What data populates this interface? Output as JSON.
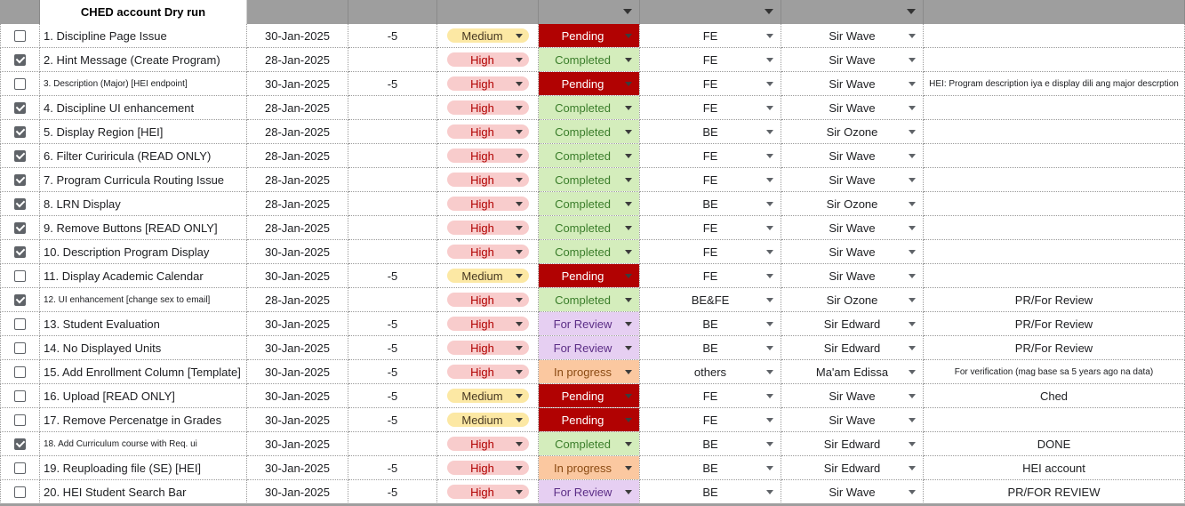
{
  "sheet": {
    "title": "CHED account Dry run"
  },
  "colors": {
    "header_bar": "#9e9e9e",
    "medium_chip": "#fce8a4",
    "high_chip": "#f8cccc",
    "pending": "#b10202",
    "completed": "#d4edbc",
    "for_review": "#e6cff2",
    "in_progress": "#fbc8a0"
  },
  "rows": [
    {
      "checked": false,
      "task": "1. Discipline Page Issue",
      "date": "30-Jan-2025",
      "num": "-5",
      "priority": "Medium",
      "status": "Pending",
      "team": "FE",
      "owner": "Sir Wave",
      "notes": ""
    },
    {
      "checked": true,
      "task": "2. Hint Message (Create Program)",
      "date": "28-Jan-2025",
      "num": "",
      "priority": "High",
      "status": "Completed",
      "team": "FE",
      "owner": "Sir Wave",
      "notes": ""
    },
    {
      "checked": false,
      "task": "3. Description (Major) [HEI endpoint]",
      "date": "30-Jan-2025",
      "num": "-5",
      "priority": "High",
      "status": "Pending",
      "team": "FE",
      "owner": "Sir Wave",
      "notes": "HEI: Program description iya e display dili ang major descrption"
    },
    {
      "checked": true,
      "task": "4. Discipline UI enhancement",
      "date": "28-Jan-2025",
      "num": "",
      "priority": "High",
      "status": "Completed",
      "team": "FE",
      "owner": "Sir Wave",
      "notes": ""
    },
    {
      "checked": true,
      "task": "5. Display Region [HEI]",
      "date": "28-Jan-2025",
      "num": "",
      "priority": "High",
      "status": "Completed",
      "team": "BE",
      "owner": "Sir Ozone",
      "notes": ""
    },
    {
      "checked": true,
      "task": "6. Filter Curiricula (READ ONLY)",
      "date": "28-Jan-2025",
      "num": "",
      "priority": "High",
      "status": "Completed",
      "team": "FE",
      "owner": "Sir Wave",
      "notes": ""
    },
    {
      "checked": true,
      "task": "7. Program Curricula Routing Issue",
      "date": "28-Jan-2025",
      "num": "",
      "priority": "High",
      "status": "Completed",
      "team": "FE",
      "owner": "Sir Wave",
      "notes": ""
    },
    {
      "checked": true,
      "task": "8. LRN Display",
      "date": "28-Jan-2025",
      "num": "",
      "priority": "High",
      "status": "Completed",
      "team": "BE",
      "owner": "Sir Ozone",
      "notes": ""
    },
    {
      "checked": true,
      "task": "9. Remove Buttons [READ ONLY]",
      "date": "28-Jan-2025",
      "num": "",
      "priority": "High",
      "status": "Completed",
      "team": "FE",
      "owner": "Sir Wave",
      "notes": ""
    },
    {
      "checked": true,
      "task": "10. Description Program Display",
      "date": "30-Jan-2025",
      "num": "",
      "priority": "High",
      "status": "Completed",
      "team": "FE",
      "owner": "Sir Wave",
      "notes": ""
    },
    {
      "checked": false,
      "task": "11. Display Academic Calendar",
      "date": "30-Jan-2025",
      "num": "-5",
      "priority": "Medium",
      "status": "Pending",
      "team": "FE",
      "owner": "Sir Wave",
      "notes": ""
    },
    {
      "checked": true,
      "task": "12. UI enhancement [change sex to email]",
      "date": "28-Jan-2025",
      "num": "",
      "priority": "High",
      "status": "Completed",
      "team": "BE&FE",
      "owner": "Sir Ozone",
      "notes": "PR/For Review"
    },
    {
      "checked": false,
      "task": "13. Student Evaluation",
      "date": "30-Jan-2025",
      "num": "-5",
      "priority": "High",
      "status": "For Review",
      "team": "BE",
      "owner": "Sir Edward",
      "notes": "PR/For Review"
    },
    {
      "checked": false,
      "task": "14. No Displayed Units",
      "date": "30-Jan-2025",
      "num": "-5",
      "priority": "High",
      "status": "For Review",
      "team": "BE",
      "owner": "Sir Edward",
      "notes": "PR/For Review"
    },
    {
      "checked": false,
      "task": "15. Add Enrollment Column [Template]",
      "date": "30-Jan-2025",
      "num": "-5",
      "priority": "High",
      "status": "In progress",
      "team": "others",
      "owner": "Ma'am Edissa",
      "notes": "For verification (mag base sa 5 years ago na data)"
    },
    {
      "checked": false,
      "task": "16. Upload [READ ONLY]",
      "date": "30-Jan-2025",
      "num": "-5",
      "priority": "Medium",
      "status": "Pending",
      "team": "FE",
      "owner": "Sir Wave",
      "notes": "Ched"
    },
    {
      "checked": false,
      "task": "17. Remove Percenatge in Grades",
      "date": "30-Jan-2025",
      "num": "-5",
      "priority": "Medium",
      "status": "Pending",
      "team": "FE",
      "owner": "Sir Wave",
      "notes": ""
    },
    {
      "checked": true,
      "task": "18. Add Curriculum course with Req. ui",
      "date": "30-Jan-2025",
      "num": "",
      "priority": "High",
      "status": "Completed",
      "team": "BE",
      "owner": "Sir Edward",
      "notes": "DONE"
    },
    {
      "checked": false,
      "task": "19. Reuploading file (SE) [HEI]",
      "date": "30-Jan-2025",
      "num": "-5",
      "priority": "High",
      "status": "In progress",
      "team": "BE",
      "owner": "Sir Edward",
      "notes": "HEI account"
    },
    {
      "checked": false,
      "task": "20. HEI Student Search Bar",
      "date": "30-Jan-2025",
      "num": "-5",
      "priority": "High",
      "status": "For Review",
      "team": "BE",
      "owner": "Sir Wave",
      "notes": "PR/FOR REVIEW"
    }
  ]
}
